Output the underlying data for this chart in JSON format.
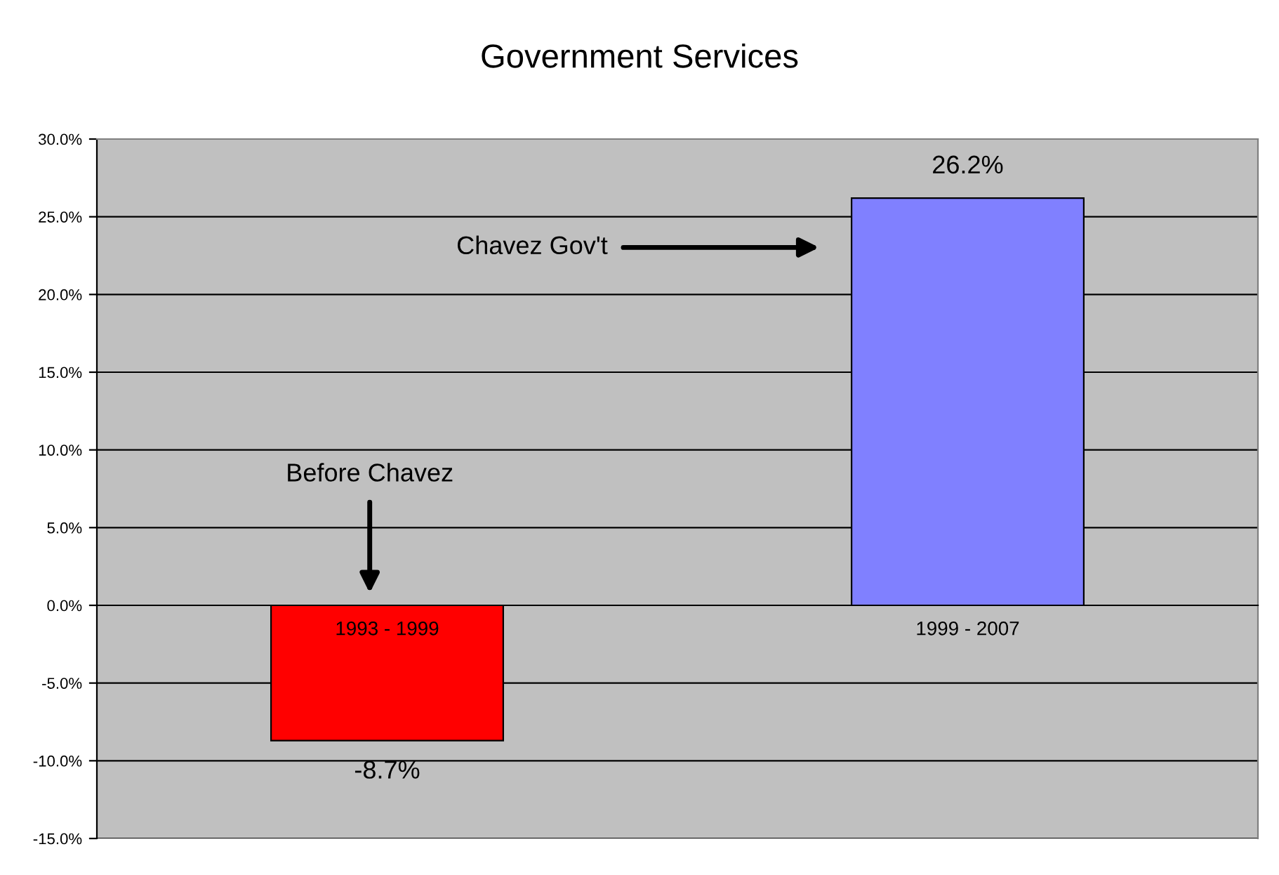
{
  "chart_data": {
    "type": "bar",
    "title": "Government Services",
    "categories": [
      "1993 - 1999",
      "1999 - 2007"
    ],
    "values": [
      -8.7,
      26.2
    ],
    "colors": [
      "#ff0000",
      "#8080ff"
    ],
    "value_labels": [
      "-8.7%",
      "26.2%"
    ],
    "ylim": [
      -15,
      30
    ],
    "yticks": [
      {
        "value": -15,
        "label": "-15.0%"
      },
      {
        "value": -10,
        "label": "-10.0%"
      },
      {
        "value": -5,
        "label": "-5.0%"
      },
      {
        "value": 0,
        "label": "0.0%"
      },
      {
        "value": 5,
        "label": "5.0%"
      },
      {
        "value": 10,
        "label": "10.0%"
      },
      {
        "value": 15,
        "label": "15.0%"
      },
      {
        "value": 20,
        "label": "20.0%"
      },
      {
        "value": 25,
        "label": "25.0%"
      },
      {
        "value": 30,
        "label": "30.0%"
      }
    ],
    "grid": "y",
    "annotations": [
      "Before Chavez",
      "Chavez Gov't"
    ]
  }
}
